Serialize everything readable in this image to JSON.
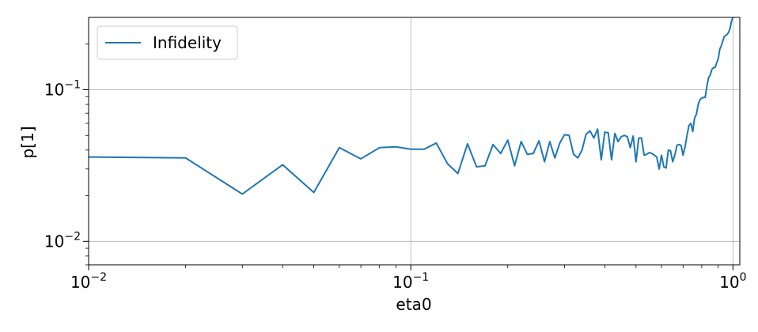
{
  "chart_data": {
    "type": "line",
    "xscale": "log",
    "yscale": "log",
    "xlim": [
      0.01,
      1.05
    ],
    "ylim": [
      0.007,
      0.3
    ],
    "xlabel": "eta0",
    "ylabel": "p[1]",
    "grid": true,
    "legend_placement": "top-left",
    "x_major_ticks": [
      {
        "base": "10",
        "exp": "−2"
      },
      {
        "base": "10",
        "exp": "−1"
      },
      {
        "base": "10",
        "exp": "0"
      }
    ],
    "y_major_ticks": [
      {
        "base": "10",
        "exp": "−2"
      },
      {
        "base": "10",
        "exp": "−1"
      }
    ],
    "series": [
      {
        "name": "Infidelity",
        "color": "#1f77b4",
        "x": [
          0.01,
          0.02,
          0.03,
          0.04,
          0.05,
          0.06,
          0.07,
          0.08,
          0.09,
          0.1,
          0.11,
          0.12,
          0.13,
          0.14,
          0.15,
          0.16,
          0.17,
          0.18,
          0.19,
          0.2,
          0.21,
          0.22,
          0.23,
          0.24,
          0.25,
          0.26,
          0.27,
          0.28,
          0.29,
          0.3,
          0.31,
          0.32,
          0.33,
          0.34,
          0.35,
          0.36,
          0.37,
          0.38,
          0.39,
          0.4,
          0.41,
          0.42,
          0.43,
          0.44,
          0.45,
          0.46,
          0.47,
          0.48,
          0.49,
          0.5,
          0.51,
          0.52,
          0.53,
          0.54,
          0.55,
          0.56,
          0.57,
          0.58,
          0.59,
          0.6,
          0.61,
          0.62,
          0.63,
          0.64,
          0.65,
          0.66,
          0.67,
          0.68,
          0.69,
          0.7,
          0.71,
          0.72,
          0.73,
          0.74,
          0.75,
          0.76,
          0.77,
          0.78,
          0.79,
          0.8,
          0.81,
          0.82,
          0.83,
          0.84,
          0.85,
          0.86,
          0.87,
          0.88,
          0.89,
          0.9,
          0.91,
          0.92,
          0.93,
          0.94,
          0.95,
          0.96,
          0.97,
          0.98,
          0.99,
          1.0
        ],
        "y": [
          0.036,
          0.0355,
          0.0205,
          0.032,
          0.021,
          0.0415,
          0.035,
          0.0415,
          0.042,
          0.0405,
          0.0405,
          0.0445,
          0.0325,
          0.028,
          0.044,
          0.031,
          0.0315,
          0.0435,
          0.038,
          0.0465,
          0.0315,
          0.0455,
          0.0375,
          0.038,
          0.046,
          0.0335,
          0.0455,
          0.0355,
          0.0445,
          0.0505,
          0.05,
          0.0375,
          0.0355,
          0.04,
          0.051,
          0.0535,
          0.048,
          0.055,
          0.0345,
          0.0525,
          0.052,
          0.0345,
          0.0515,
          0.0455,
          0.049,
          0.05,
          0.049,
          0.0415,
          0.0495,
          0.0335,
          0.048,
          0.048,
          0.037,
          0.0375,
          0.0385,
          0.038,
          0.037,
          0.036,
          0.03,
          0.037,
          0.031,
          0.0305,
          0.04,
          0.0395,
          0.0335,
          0.037,
          0.043,
          0.0435,
          0.043,
          0.037,
          0.042,
          0.05,
          0.058,
          0.06,
          0.053,
          0.065,
          0.069,
          0.08,
          0.086,
          0.088,
          0.089,
          0.089,
          0.106,
          0.12,
          0.125,
          0.136,
          0.14,
          0.14,
          0.15,
          0.16,
          0.185,
          0.195,
          0.21,
          0.225,
          0.228,
          0.232,
          0.24,
          0.255,
          0.285,
          0.3
        ]
      }
    ]
  }
}
